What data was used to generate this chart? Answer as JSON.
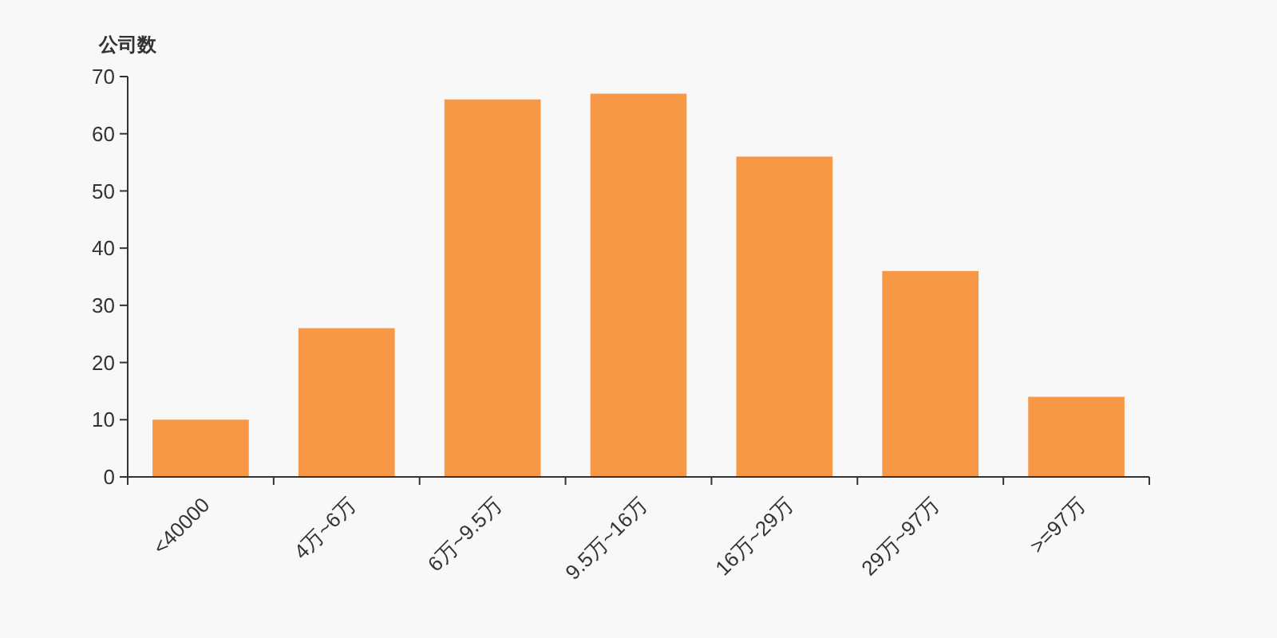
{
  "chart_data": {
    "type": "bar",
    "ylabel": "公司数",
    "categories": [
      "<40000",
      "4万~6万",
      "6万~9.5万",
      "9.5万~16万",
      "16万~29万",
      "29万~97万",
      ">=97万"
    ],
    "values": [
      10,
      26,
      66,
      67,
      56,
      36,
      14
    ],
    "color": "#f79846",
    "ylim": [
      0,
      70
    ],
    "yticks": [
      0,
      10,
      20,
      30,
      40,
      50,
      60,
      70
    ],
    "grid": false
  }
}
